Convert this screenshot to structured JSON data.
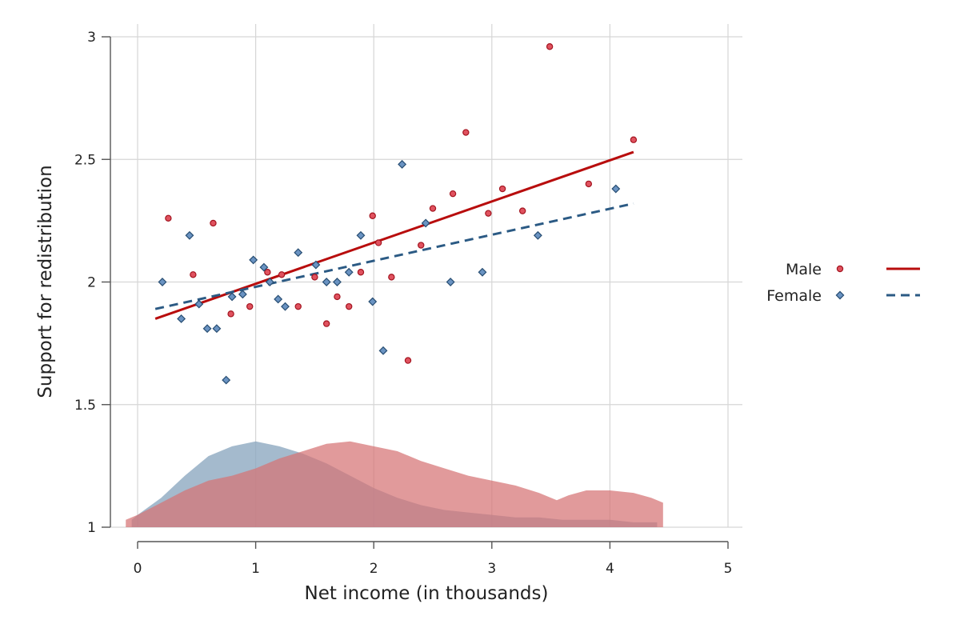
{
  "chart_data": {
    "type": "scatter",
    "xlabel": "Net income (in thousands)",
    "ylabel": "Support for redistribution",
    "xlim": [
      -0.1,
      5
    ],
    "ylim": [
      1,
      3
    ],
    "xticks": [
      0,
      1,
      2,
      3,
      4,
      5
    ],
    "xtick_labels": [
      "0",
      "1",
      "2",
      "3",
      "4",
      "5"
    ],
    "yticks": [
      1,
      1.5,
      2,
      2.5,
      3
    ],
    "ytick_labels": [
      "1",
      "1.5",
      "2",
      "2.5",
      "3"
    ],
    "grid": true,
    "legend_position": "right",
    "series": [
      {
        "name": "Male",
        "marker": "circle",
        "color": "#e0525f",
        "edge_color": "#a3141f",
        "fit_line": {
          "style": "solid",
          "color": "#b80d0d",
          "x": [
            0.15,
            4.2
          ],
          "y": [
            1.85,
            2.53
          ]
        },
        "points": [
          [
            0.26,
            2.26
          ],
          [
            0.47,
            2.03
          ],
          [
            0.64,
            2.24
          ],
          [
            0.79,
            1.87
          ],
          [
            0.95,
            1.9
          ],
          [
            1.1,
            2.04
          ],
          [
            1.22,
            2.03
          ],
          [
            1.36,
            1.9
          ],
          [
            1.5,
            2.02
          ],
          [
            1.6,
            1.83
          ],
          [
            1.69,
            1.94
          ],
          [
            1.79,
            1.9
          ],
          [
            1.89,
            2.04
          ],
          [
            1.99,
            2.27
          ],
          [
            2.04,
            2.16
          ],
          [
            2.15,
            2.02
          ],
          [
            2.29,
            1.68
          ],
          [
            2.4,
            2.15
          ],
          [
            2.5,
            2.3
          ],
          [
            2.67,
            2.36
          ],
          [
            2.78,
            2.61
          ],
          [
            2.97,
            2.28
          ],
          [
            3.09,
            2.38
          ],
          [
            3.26,
            2.29
          ],
          [
            3.49,
            2.96
          ],
          [
            3.82,
            2.4
          ],
          [
            4.2,
            2.58
          ]
        ],
        "density": {
          "color": "#d57375",
          "x": [
            -0.1,
            0.0,
            0.2,
            0.4,
            0.6,
            0.8,
            1.0,
            1.2,
            1.4,
            1.6,
            1.8,
            2.0,
            2.2,
            2.4,
            2.6,
            2.8,
            3.0,
            3.2,
            3.4,
            3.55,
            3.65,
            3.8,
            4.0,
            4.2,
            4.35,
            4.45
          ],
          "y": [
            1.03,
            1.05,
            1.1,
            1.15,
            1.19,
            1.21,
            1.24,
            1.28,
            1.31,
            1.34,
            1.35,
            1.33,
            1.31,
            1.27,
            1.24,
            1.21,
            1.19,
            1.17,
            1.14,
            1.11,
            1.13,
            1.15,
            1.15,
            1.14,
            1.12,
            1.1
          ]
        }
      },
      {
        "name": "Female",
        "marker": "diamond",
        "color": "#6a93c2",
        "edge_color": "#274d72",
        "fit_line": {
          "style": "dashed",
          "color": "#2b5a84",
          "x": [
            0.15,
            4.2
          ],
          "y": [
            1.89,
            2.32
          ]
        },
        "points": [
          [
            0.21,
            2.0
          ],
          [
            0.37,
            1.85
          ],
          [
            0.44,
            2.19
          ],
          [
            0.52,
            1.91
          ],
          [
            0.59,
            1.81
          ],
          [
            0.67,
            1.81
          ],
          [
            0.75,
            1.6
          ],
          [
            0.8,
            1.94
          ],
          [
            0.89,
            1.95
          ],
          [
            0.98,
            2.09
          ],
          [
            1.07,
            2.06
          ],
          [
            1.12,
            2.0
          ],
          [
            1.19,
            1.93
          ],
          [
            1.25,
            1.9
          ],
          [
            1.36,
            2.12
          ],
          [
            1.51,
            2.07
          ],
          [
            1.6,
            2.0
          ],
          [
            1.69,
            2.0
          ],
          [
            1.79,
            2.04
          ],
          [
            1.89,
            2.19
          ],
          [
            1.99,
            1.92
          ],
          [
            2.08,
            1.72
          ],
          [
            2.24,
            2.48
          ],
          [
            2.44,
            2.24
          ],
          [
            2.65,
            2.0
          ],
          [
            2.92,
            2.04
          ],
          [
            3.39,
            2.19
          ],
          [
            4.05,
            2.38
          ]
        ],
        "density": {
          "color": "#8aa6bf",
          "x": [
            -0.05,
            0.0,
            0.2,
            0.4,
            0.6,
            0.8,
            1.0,
            1.2,
            1.4,
            1.6,
            1.8,
            2.0,
            2.2,
            2.4,
            2.6,
            2.8,
            3.0,
            3.2,
            3.4,
            3.6,
            3.8,
            4.0,
            4.2,
            4.4
          ],
          "y": [
            1.03,
            1.05,
            1.12,
            1.21,
            1.29,
            1.33,
            1.35,
            1.33,
            1.3,
            1.26,
            1.21,
            1.16,
            1.12,
            1.09,
            1.07,
            1.06,
            1.05,
            1.04,
            1.04,
            1.03,
            1.03,
            1.03,
            1.02,
            1.02
          ]
        }
      }
    ]
  }
}
